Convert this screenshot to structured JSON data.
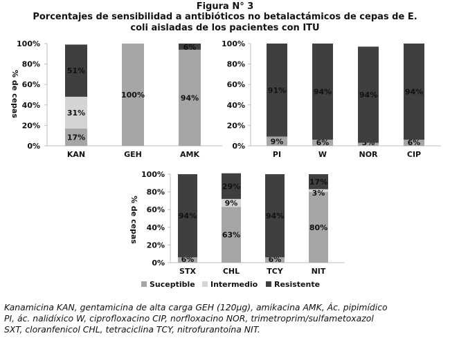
{
  "figure": {
    "label": "Figura N° 3",
    "title_line1": "Porcentajes de sensibilidad a antibióticos no betalactámicos de cepas de E.",
    "title_line2": "coli aisladas de los pacientes con ITU"
  },
  "caption": {
    "line1": "Kanamicina KAN, gentamicina de alta carga GEH (120μg), amikacina AMK, Ác. pipimídico",
    "line2": "PI, ác. nalidíxico W, ciprofloxacino CIP, norfloxacino NOR, trimetroprim/sulfametoxazol",
    "line3": "SXT, cloranfenicol CHL, tetraciclina TCY, nitrofurantoína NIT."
  },
  "colors": {
    "suceptible": "#a6a6a6",
    "intermedio": "#d4d4d4",
    "resistente": "#3f3f3f",
    "axis": "#bdbdbd"
  },
  "chart_data": [
    {
      "type": "bar",
      "stacked": true,
      "ylabel": "% de cepas",
      "yticks": [
        "0%",
        "20%",
        "40%",
        "60%",
        "80%",
        "100%"
      ],
      "ylim": [
        0,
        100
      ],
      "categories": [
        "KAN",
        "GEH",
        "AMK"
      ],
      "series": [
        {
          "name": "Suceptible",
          "values": [
            17,
            100,
            94
          ]
        },
        {
          "name": "Intermedio",
          "values": [
            31,
            0,
            0
          ]
        },
        {
          "name": "Resistente",
          "values": [
            51,
            0,
            6
          ]
        }
      ],
      "data_labels": [
        [
          "17%",
          "100%",
          "94%"
        ],
        [
          "31%",
          "",
          ""
        ],
        [
          "51%",
          "",
          "6%"
        ]
      ]
    },
    {
      "type": "bar",
      "stacked": true,
      "ylabel": "",
      "yticks": [
        "0%",
        "20%",
        "40%",
        "60%",
        "80%",
        "100%"
      ],
      "ylim": [
        0,
        100
      ],
      "categories": [
        "PI",
        "W",
        "NOR",
        "CIP"
      ],
      "series": [
        {
          "name": "Suceptible",
          "values": [
            9,
            6,
            3,
            6
          ]
        },
        {
          "name": "Intermedio",
          "values": [
            0,
            0,
            0,
            0
          ]
        },
        {
          "name": "Resistente",
          "values": [
            91,
            94,
            94,
            94
          ]
        }
      ],
      "data_labels": [
        [
          "9%",
          "6%",
          "3%",
          "6%"
        ],
        [
          "",
          "",
          "",
          ""
        ],
        [
          "91%",
          "94%",
          "94%",
          "94%"
        ]
      ]
    },
    {
      "type": "bar",
      "stacked": true,
      "ylabel": "% de cepas",
      "yticks": [
        "0%",
        "20%",
        "40%",
        "60%",
        "80%",
        "100%"
      ],
      "ylim": [
        0,
        100
      ],
      "categories": [
        "STX",
        "CHL",
        "TCY",
        "NIT"
      ],
      "series": [
        {
          "name": "Suceptible",
          "values": [
            6,
            63,
            6,
            80
          ]
        },
        {
          "name": "Intermedio",
          "values": [
            0,
            9,
            0,
            3
          ]
        },
        {
          "name": "Resistente",
          "values": [
            94,
            29,
            94,
            17
          ]
        }
      ],
      "data_labels": [
        [
          "6%",
          "63%",
          "6%",
          "80%"
        ],
        [
          "",
          "9%",
          "",
          "3%"
        ],
        [
          "94%",
          "29%",
          "94%",
          "17%"
        ]
      ],
      "legend": {
        "position": "bottom",
        "entries": [
          "Suceptible",
          "Intermedio",
          "Resistente"
        ]
      }
    }
  ]
}
